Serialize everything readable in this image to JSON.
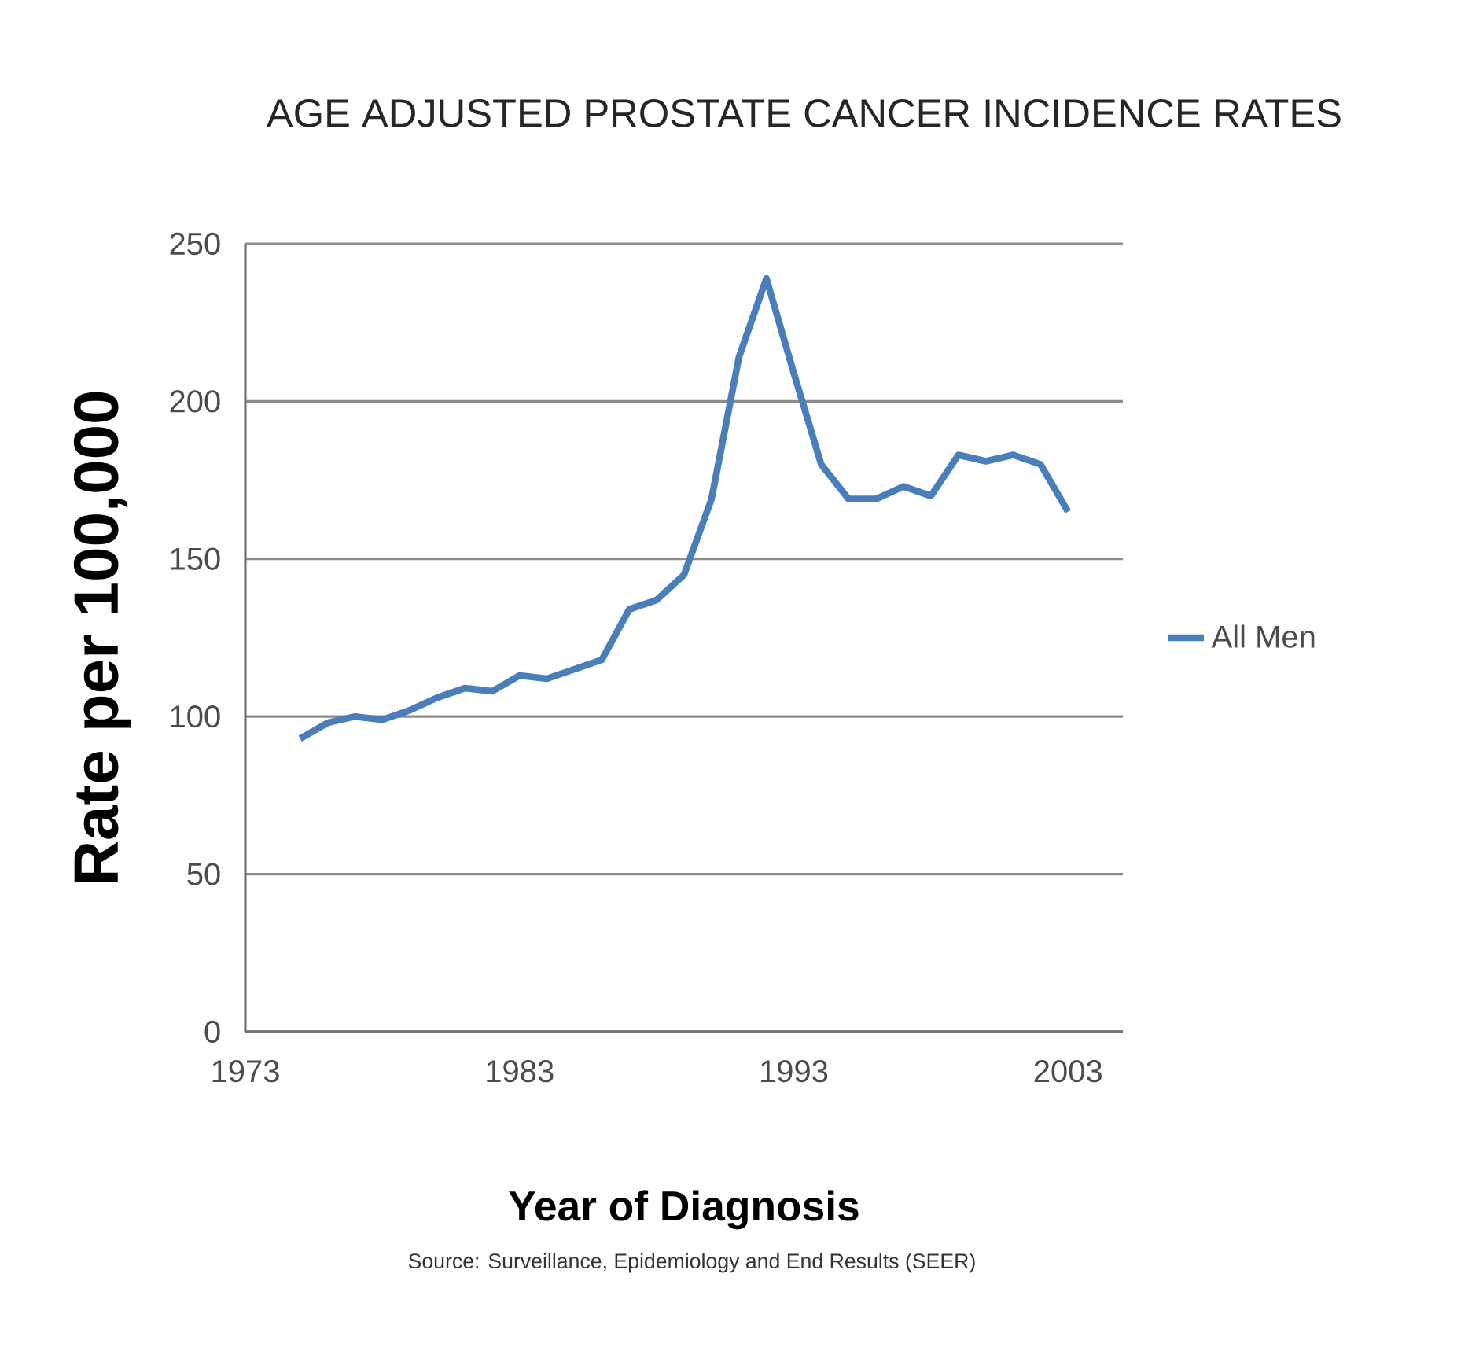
{
  "chart_data": {
    "type": "line",
    "title": "AGE ADJUSTED PROSTATE CANCER INCIDENCE RATES",
    "xlabel": "Year of Diagnosis",
    "ylabel": "Rate per 100,000",
    "annotations": [
      "Source:  Surveillance, Epidemiology and End Results (SEER)"
    ],
    "x": [
      1975,
      1976,
      1977,
      1978,
      1979,
      1980,
      1981,
      1982,
      1983,
      1984,
      1985,
      1986,
      1987,
      1988,
      1989,
      1990,
      1991,
      1992,
      1993,
      1994,
      1995,
      1996,
      1997,
      1998,
      1999,
      2000,
      2001,
      2002,
      2003
    ],
    "series": [
      {
        "name": "All Men",
        "color": "#4a7ebb",
        "values": [
          93,
          98,
          100,
          99,
          102,
          106,
          109,
          108,
          113,
          112,
          115,
          118,
          134,
          137,
          145,
          169,
          214,
          239,
          209,
          180,
          169,
          169,
          173,
          170,
          183,
          181,
          183,
          180,
          165
        ]
      }
    ],
    "xlim": [
      1973,
      2005
    ],
    "xticks": [
      1973,
      1983,
      1993,
      2003
    ],
    "ylim": [
      0,
      250
    ],
    "yticks": [
      0,
      50,
      100,
      150,
      200,
      250
    ],
    "grid": "y",
    "legend": "right",
    "marker": "none",
    "line_style": "solid"
  }
}
